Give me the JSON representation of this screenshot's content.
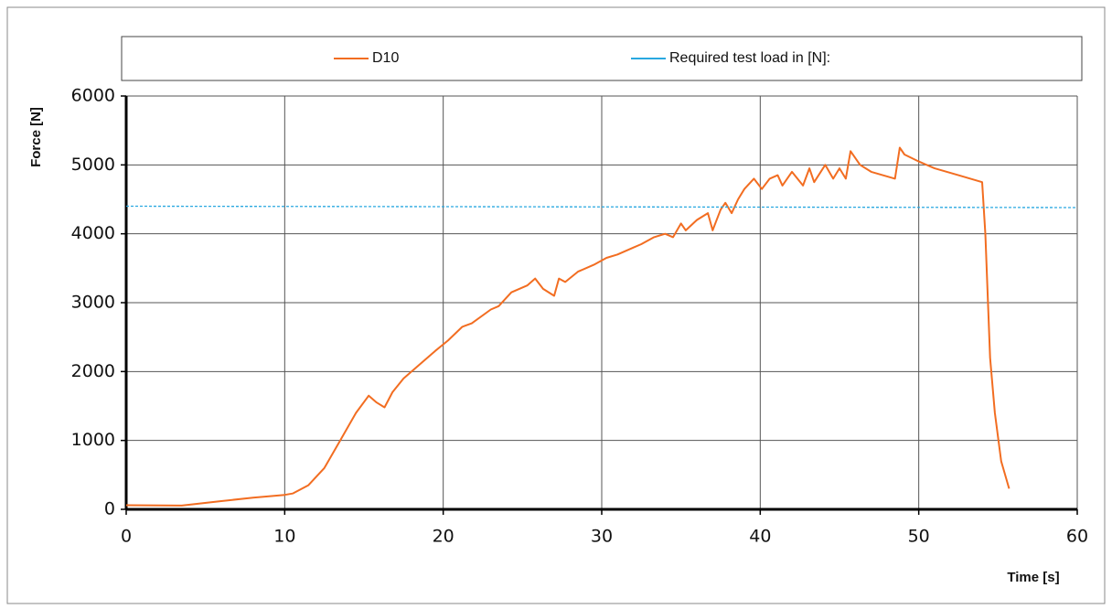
{
  "chart_data": {
    "type": "line",
    "x_label": "Time [s]",
    "y_label": "Force [N]",
    "xlim": [
      0,
      60
    ],
    "ylim": [
      0,
      6000
    ],
    "xticks": [
      0,
      10,
      20,
      30,
      40,
      50,
      60
    ],
    "yticks": [
      0,
      1000,
      2000,
      3000,
      4000,
      5000,
      6000
    ],
    "grid": true,
    "legend": "top",
    "series": [
      {
        "name": "D10",
        "color": "#f26d21",
        "x": [
          0,
          3.5,
          6,
          8,
          10,
          10.5,
          11.5,
          12.5,
          13.5,
          14.5,
          15.3,
          15.8,
          16.3,
          16.8,
          17.5,
          18.5,
          19.5,
          20.3,
          21.2,
          21.8,
          23,
          23.5,
          24.3,
          25.3,
          25.8,
          26.3,
          27,
          27.3,
          27.7,
          28.5,
          29.5,
          30.3,
          31,
          32,
          32.5,
          33.3,
          34,
          34.5,
          35,
          35.3,
          36,
          36.7,
          37,
          37.5,
          37.8,
          38.2,
          38.6,
          39,
          39.6,
          40.1,
          40.6,
          41.1,
          41.4,
          42,
          42.7,
          43.1,
          43.4,
          44.1,
          44.6,
          45,
          45.4,
          45.7,
          46.3,
          47,
          48.5,
          48.8,
          49.1,
          50,
          51,
          52.5,
          54,
          54.2,
          54.5,
          54.8,
          55.2,
          55.7
        ],
        "values": [
          60,
          55,
          120,
          170,
          210,
          230,
          350,
          600,
          1000,
          1400,
          1650,
          1550,
          1480,
          1700,
          1900,
          2100,
          2300,
          2450,
          2650,
          2700,
          2900,
          2950,
          3150,
          3250,
          3350,
          3200,
          3100,
          3350,
          3300,
          3450,
          3550,
          3650,
          3700,
          3800,
          3850,
          3950,
          4000,
          3950,
          4150,
          4050,
          4200,
          4300,
          4050,
          4350,
          4450,
          4300,
          4500,
          4650,
          4800,
          4650,
          4800,
          4850,
          4700,
          4900,
          4700,
          4950,
          4750,
          5000,
          4800,
          4950,
          4800,
          5200,
          5000,
          4900,
          4800,
          5250,
          5150,
          5050,
          4950,
          4850,
          4750,
          4000,
          2200,
          1400,
          700,
          300
        ]
      },
      {
        "name": "Required test load in [N]:",
        "color": "#29a8e0",
        "dashed": true,
        "x": [
          0,
          60
        ],
        "values": [
          4400,
          4380
        ]
      }
    ]
  }
}
